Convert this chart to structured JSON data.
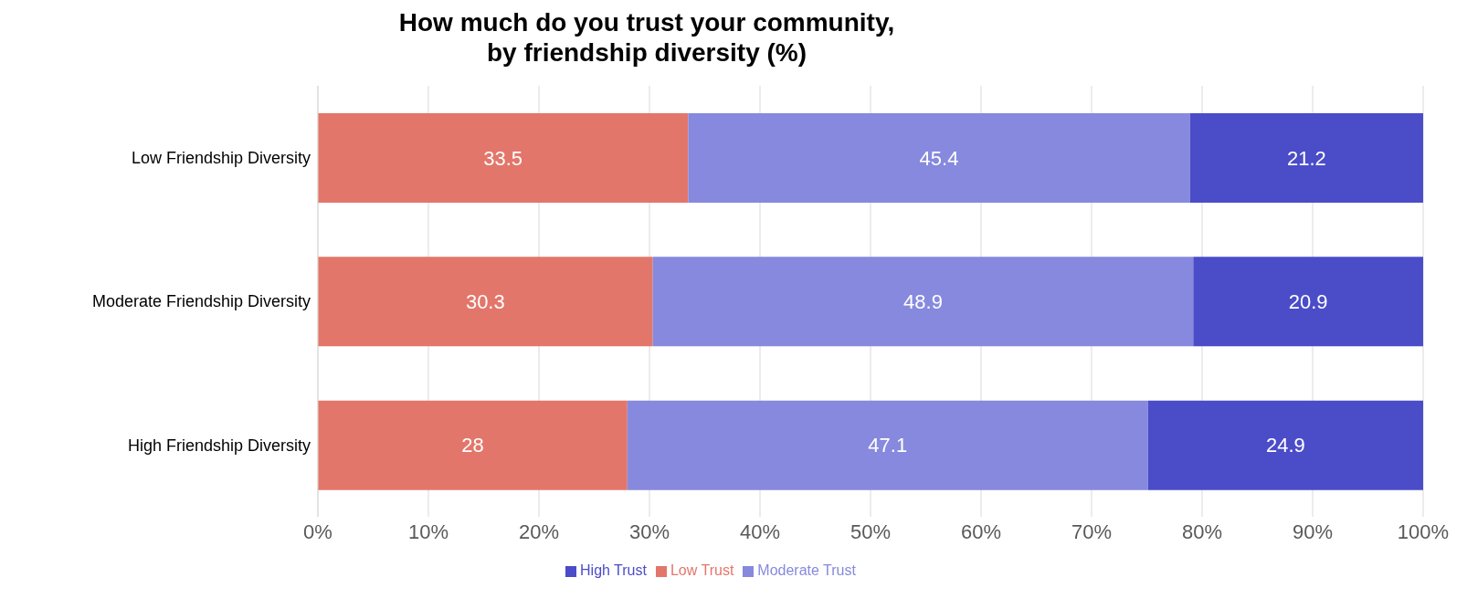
{
  "chart_data": {
    "type": "bar",
    "orientation": "horizontal",
    "stacked": true,
    "title": "How much do you trust your community,\nby friendship diversity (%)",
    "categories": [
      "Low Friendship Diversity",
      "Moderate Friendship Diversity",
      "High Friendship Diversity"
    ],
    "series": [
      {
        "name": "Low Trust",
        "color": "#e3766a",
        "values": [
          33.5,
          30.3,
          28
        ]
      },
      {
        "name": "Moderate Trust",
        "color": "#8689dd",
        "values": [
          45.4,
          48.9,
          47.1
        ]
      },
      {
        "name": "High Trust",
        "color": "#4b4cc8",
        "values": [
          21.2,
          20.9,
          24.9
        ]
      }
    ],
    "xlim": [
      0,
      100
    ],
    "xticks": [
      {
        "value": 0,
        "label": "0%"
      },
      {
        "value": 10,
        "label": "10%"
      },
      {
        "value": 20,
        "label": "20%"
      },
      {
        "value": 30,
        "label": "30%"
      },
      {
        "value": 40,
        "label": "40%"
      },
      {
        "value": 50,
        "label": "50%"
      },
      {
        "value": 60,
        "label": "60%"
      },
      {
        "value": 70,
        "label": "70%"
      },
      {
        "value": 80,
        "label": "80%"
      },
      {
        "value": 90,
        "label": "90%"
      },
      {
        "value": 100,
        "label": "100%"
      }
    ],
    "grid": "x",
    "legend": "bottom",
    "data_labels": true
  }
}
